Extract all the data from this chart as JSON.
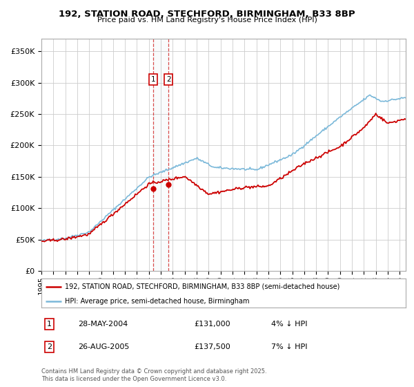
{
  "title": "192, STATION ROAD, STECHFORD, BIRMINGHAM, B33 8BP",
  "subtitle": "Price paid vs. HM Land Registry's House Price Index (HPI)",
  "ylabel_ticks": [
    "£0",
    "£50K",
    "£100K",
    "£150K",
    "£200K",
    "£250K",
    "£300K",
    "£350K"
  ],
  "ytick_values": [
    0,
    50000,
    100000,
    150000,
    200000,
    250000,
    300000,
    350000
  ],
  "ylim": [
    0,
    370000
  ],
  "xlim_start": 1995.0,
  "xlim_end": 2025.5,
  "hpi_color": "#7ab8d9",
  "price_color": "#cc0000",
  "vline_color": "#cc0000",
  "grid_color": "#cccccc",
  "background_color": "#ffffff",
  "sale1_date": "28-MAY-2004",
  "sale1_price": 131000,
  "sale1_hpi_diff": "4% ↓ HPI",
  "sale2_date": "26-AUG-2005",
  "sale2_price": 137500,
  "sale2_hpi_diff": "7% ↓ HPI",
  "sale1_x": 2004.38,
  "sale2_x": 2005.65,
  "footer": "Contains HM Land Registry data © Crown copyright and database right 2025.\nThis data is licensed under the Open Government Licence v3.0.",
  "legend_line1": "192, STATION ROAD, STECHFORD, BIRMINGHAM, B33 8BP (semi-detached house)",
  "legend_line2": "HPI: Average price, semi-detached house, Birmingham"
}
